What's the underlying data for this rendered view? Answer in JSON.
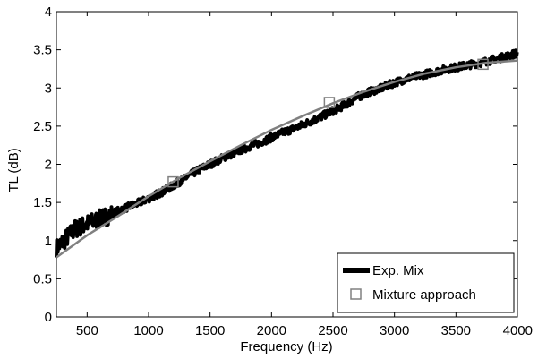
{
  "chart_data": {
    "type": "line",
    "title": "",
    "xlabel": "Frequency (Hz)",
    "ylabel": "TL (dB)",
    "xlim": [
      250,
      4000
    ],
    "ylim": [
      0,
      4
    ],
    "x_ticks": [
      500,
      1000,
      1500,
      2000,
      2500,
      3000,
      3500,
      4000
    ],
    "x_tick_labels": [
      "500",
      "1000",
      "1500",
      "2000",
      "2500",
      "3000",
      "3500",
      "4000"
    ],
    "y_ticks": [
      0,
      0.5,
      1,
      1.5,
      2,
      2.5,
      3,
      3.5,
      4
    ],
    "y_tick_labels": [
      "0",
      "0.5",
      "1",
      "1.5",
      "2",
      "2.5",
      "3",
      "3.5",
      "4"
    ],
    "grid": false,
    "legend_position": "bottom-right",
    "series": [
      {
        "name": "Exp. Mix",
        "style": "noisy-line",
        "color": "#000000",
        "x": [
          250,
          300,
          400,
          500,
          600,
          700,
          800,
          900,
          1000,
          1100,
          1200,
          1300,
          1400,
          1500,
          1600,
          1700,
          1800,
          1900,
          2000,
          2100,
          2200,
          2300,
          2400,
          2500,
          2600,
          2700,
          2800,
          2900,
          3000,
          3100,
          3200,
          3300,
          3400,
          3500,
          3600,
          3700,
          3800,
          3900,
          4000
        ],
        "y": [
          0.9,
          0.98,
          1.15,
          1.22,
          1.28,
          1.35,
          1.42,
          1.48,
          1.55,
          1.63,
          1.72,
          1.82,
          1.92,
          2.0,
          2.08,
          2.15,
          2.22,
          2.28,
          2.35,
          2.42,
          2.48,
          2.55,
          2.62,
          2.7,
          2.78,
          2.88,
          2.95,
          3.0,
          3.07,
          3.12,
          3.16,
          3.2,
          3.24,
          3.27,
          3.3,
          3.33,
          3.37,
          3.41,
          3.46
        ]
      },
      {
        "name": "Mixture approach",
        "style": "line-with-square-markers",
        "color": "#808080",
        "x": [
          250,
          500,
          750,
          1000,
          1250,
          1500,
          1750,
          2000,
          2250,
          2500,
          2750,
          3000,
          3250,
          3500,
          3750,
          4000
        ],
        "y": [
          0.78,
          1.07,
          1.32,
          1.58,
          1.82,
          2.04,
          2.25,
          2.45,
          2.63,
          2.8,
          2.95,
          3.08,
          3.19,
          3.27,
          3.33,
          3.36
        ],
        "marker_x": [
          1200,
          2470,
          3720
        ],
        "marker_y": [
          1.77,
          2.81,
          3.31
        ]
      }
    ]
  }
}
